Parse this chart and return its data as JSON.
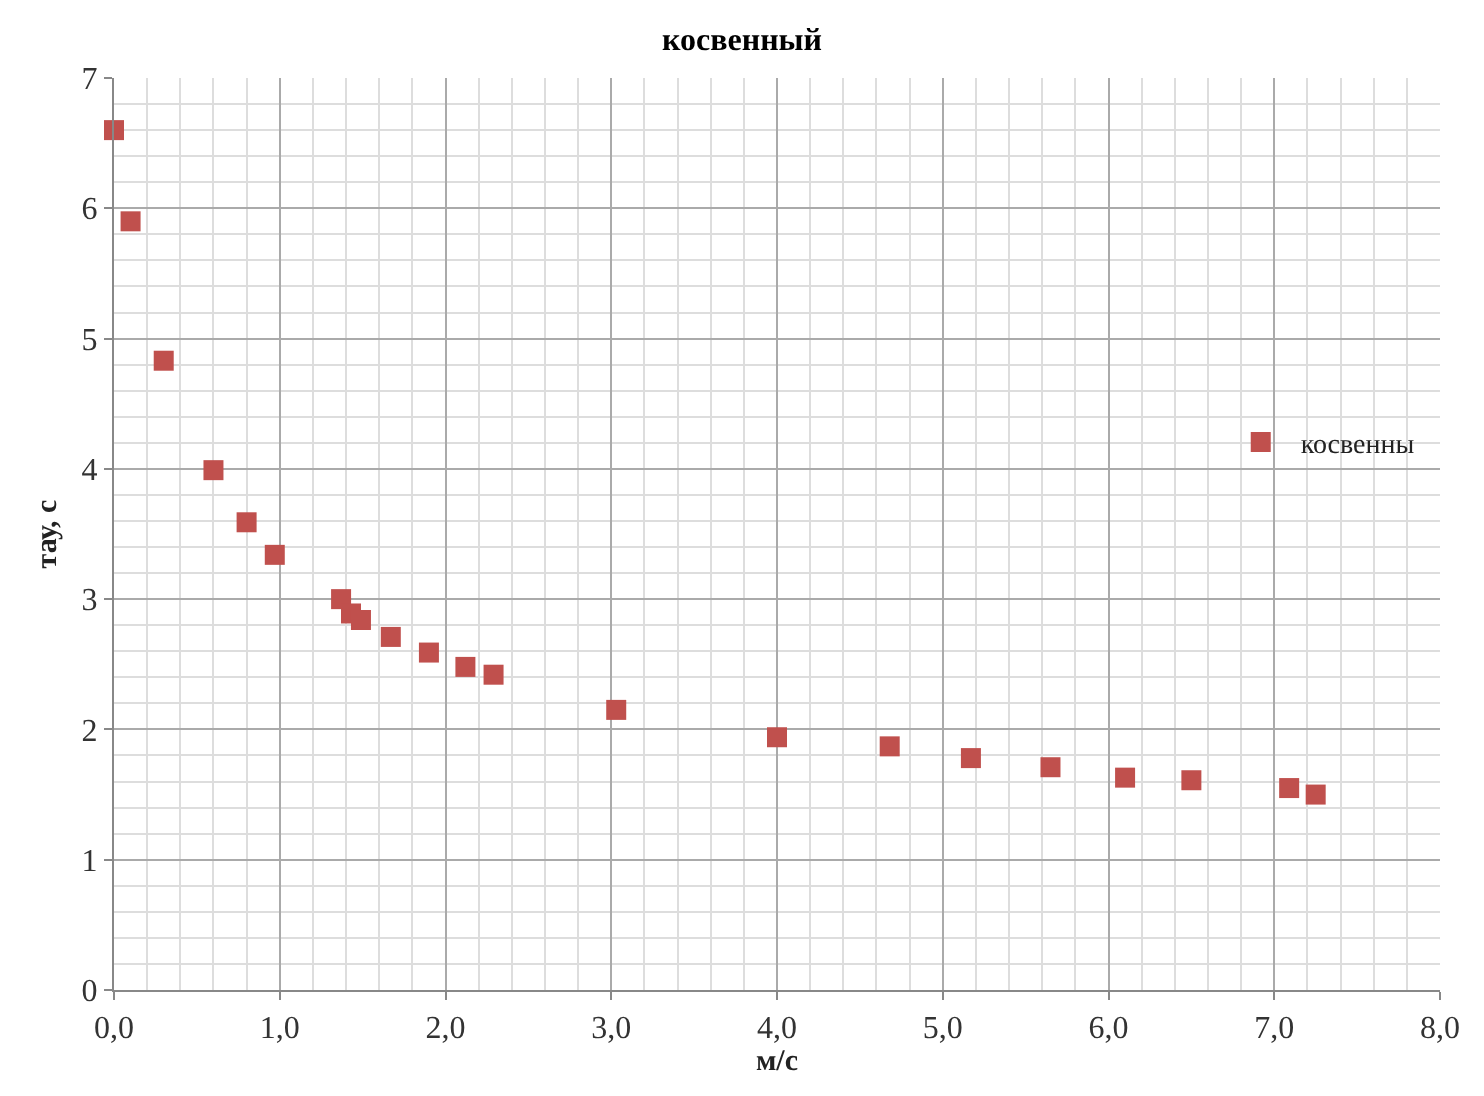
{
  "chart_data": {
    "type": "scatter",
    "title": "косвенный",
    "xlabel": "м/с",
    "ylabel": "тау, с",
    "x": [
      0.0,
      0.1,
      0.3,
      0.6,
      0.8,
      0.97,
      1.37,
      1.43,
      1.49,
      1.67,
      1.9,
      2.12,
      2.29,
      3.03,
      4.0,
      4.68,
      5.17,
      5.65,
      6.1,
      6.5,
      7.09,
      7.25
    ],
    "series": [
      {
        "name": "косвенны",
        "color": "#c0504d",
        "values": [
          6.6,
          5.9,
          4.83,
          3.99,
          3.59,
          3.34,
          3.0,
          2.89,
          2.84,
          2.71,
          2.59,
          2.48,
          2.42,
          2.15,
          1.94,
          1.87,
          1.78,
          1.71,
          1.63,
          1.61,
          1.55,
          1.5
        ]
      }
    ],
    "xlim": [
      0,
      8
    ],
    "ylim": [
      0,
      7
    ],
    "xticks": [
      {
        "value": 0,
        "label": "0,0"
      },
      {
        "value": 1,
        "label": "1,0"
      },
      {
        "value": 2,
        "label": "2,0"
      },
      {
        "value": 3,
        "label": "3,0"
      },
      {
        "value": 4,
        "label": "4,0"
      },
      {
        "value": 5,
        "label": "5,0"
      },
      {
        "value": 6,
        "label": "6,0"
      },
      {
        "value": 7,
        "label": "7,0"
      },
      {
        "value": 8,
        "label": "8,0"
      }
    ],
    "yticks": [
      0,
      1,
      2,
      3,
      4,
      5,
      6,
      7
    ],
    "grid": true,
    "legend": "right",
    "marker": "square"
  }
}
